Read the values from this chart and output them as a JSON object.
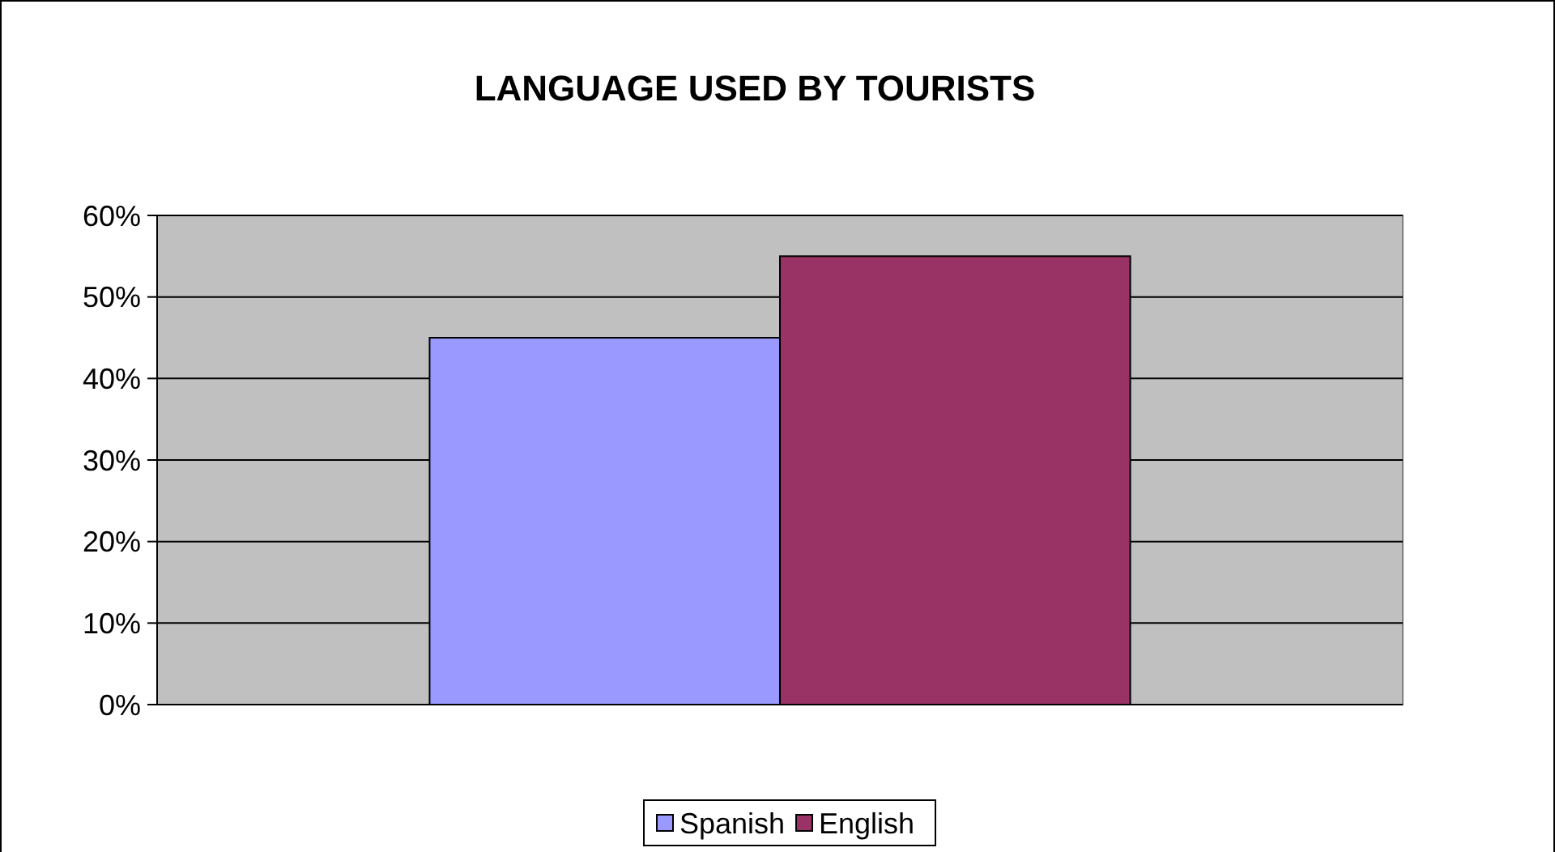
{
  "chart_data": {
    "type": "bar",
    "title": "LANGUAGE USED  BY TOURISTS",
    "categories": [
      null
    ],
    "series": [
      {
        "name": "Spanish",
        "color": "#9999ff",
        "values": [
          45
        ]
      },
      {
        "name": "English",
        "color": "#993366",
        "values": [
          55
        ]
      }
    ],
    "ylim": [
      0,
      60
    ],
    "yticks": [
      {
        "value": 0,
        "label": "0%"
      },
      {
        "value": 10,
        "label": "10%"
      },
      {
        "value": 20,
        "label": "20%"
      },
      {
        "value": 30,
        "label": "30%"
      },
      {
        "value": 40,
        "label": "40%"
      },
      {
        "value": 50,
        "label": "50%"
      },
      {
        "value": 60,
        "label": "60%"
      }
    ],
    "grid": "y",
    "legend": "bottom"
  }
}
